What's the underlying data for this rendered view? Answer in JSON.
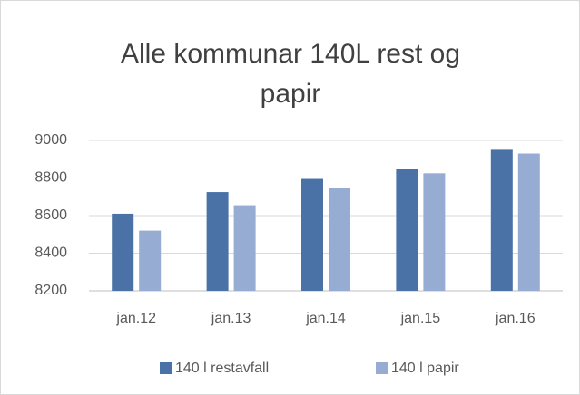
{
  "chart_data": {
    "type": "bar",
    "title": "Alle kommunar 140L rest og papir",
    "categories": [
      "jan.12",
      "jan.13",
      "jan.14",
      "jan.15",
      "jan.16"
    ],
    "series": [
      {
        "name": "140 l restavfall",
        "color": "#4a72a6",
        "values": [
          8610,
          8725,
          8795,
          8850,
          8950
        ]
      },
      {
        "name": "140 l papir",
        "color": "#97acd2",
        "values": [
          8520,
          8655,
          8745,
          8825,
          8930
        ]
      }
    ],
    "ylim": [
      8200,
      9000
    ],
    "yticks": [
      8200,
      8400,
      8600,
      8800,
      9000
    ],
    "grid": true,
    "legend": "bottom"
  }
}
